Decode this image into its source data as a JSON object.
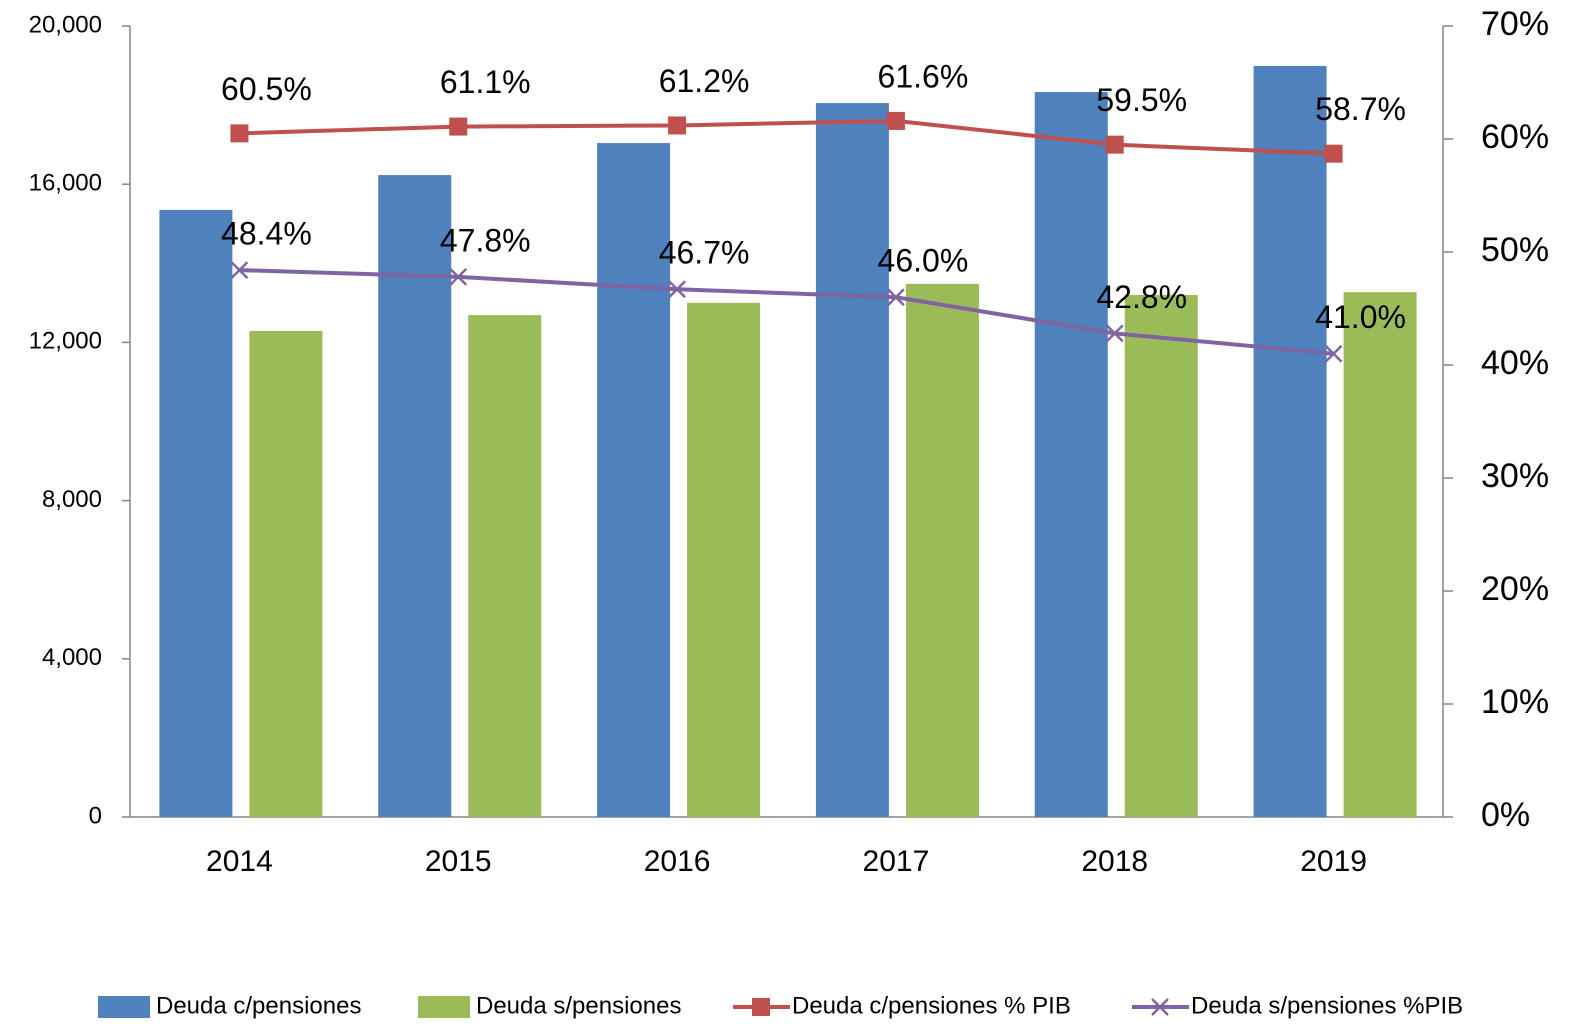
{
  "chart_data": {
    "type": "bar_line",
    "categories": [
      "2014",
      "2015",
      "2016",
      "2017",
      "2018",
      "2019"
    ],
    "series": [
      {
        "name": "Deuda c/pensiones",
        "color": "#4f81bd",
        "type": "bar",
        "values": [
          15350,
          16230,
          17040,
          18050,
          18330,
          18990
        ]
      },
      {
        "name": "Deuda s/pensiones",
        "color": "#9bbb59",
        "type": "bar",
        "values": [
          12290,
          12690,
          13000,
          13480,
          13200,
          13270
        ]
      },
      {
        "name": "Deuda c/pensiones % PIB",
        "color": "#c0504d",
        "type": "line",
        "marker": "square",
        "axis": "y2",
        "values": [
          60.5,
          61.1,
          61.2,
          61.6,
          59.5,
          58.7
        ],
        "value_labels": [
          "60.5%",
          "61.1%",
          "61.2%",
          "61.6%",
          "59.5%",
          "58.7%"
        ]
      },
      {
        "name": "Deuda s/pensiones %PIB",
        "color": "#8064a2",
        "type": "line",
        "marker": "x",
        "axis": "y2",
        "values": [
          48.4,
          47.8,
          46.7,
          46.0,
          42.8,
          41.0
        ],
        "value_labels": [
          "48.4%",
          "47.8%",
          "46.7%",
          "46.0%",
          "42.8%",
          "41.0%"
        ]
      }
    ],
    "ylim": [
      0,
      20000
    ],
    "yticks": [
      0,
      {
        "value": 4000,
        "label": "4,000"
      },
      {
        "value": 8000,
        "label": "8,000"
      },
      {
        "value": 12000,
        "label": "12,000"
      },
      {
        "value": 16000,
        "label": "16,000"
      },
      {
        "value": 20000,
        "label": "20,000"
      }
    ],
    "y2lim": [
      0,
      70
    ],
    "y2ticks": [
      {
        "value": 0,
        "label": "0%"
      },
      {
        "value": 10,
        "label": "10%"
      },
      {
        "value": 20,
        "label": "20%"
      },
      {
        "value": 30,
        "label": "30%"
      },
      {
        "value": 40,
        "label": "40%"
      },
      {
        "value": 50,
        "label": "50%"
      },
      {
        "value": 60,
        "label": "60%"
      },
      {
        "value": 70,
        "label": "70%"
      }
    ],
    "grid": false,
    "legend": "bottom"
  }
}
